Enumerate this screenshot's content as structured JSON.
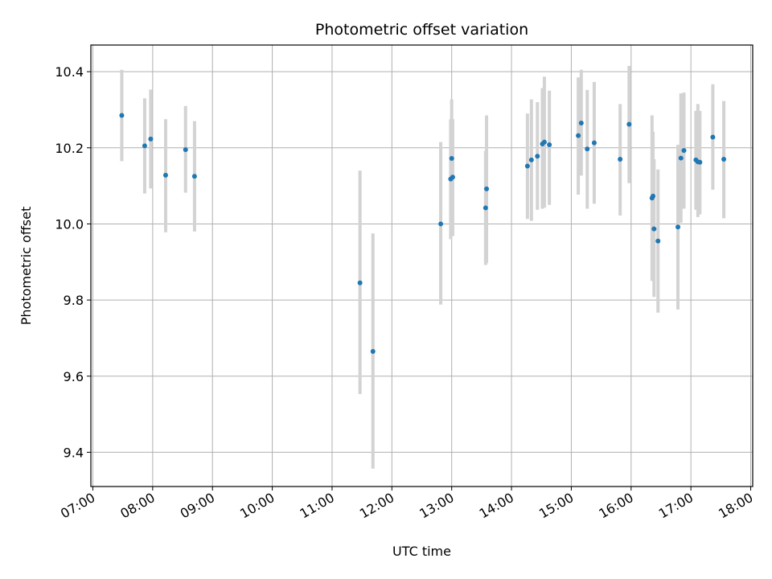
{
  "chart_data": {
    "type": "scatter",
    "title": "Photometric offset variation",
    "xlabel": "UTC time",
    "ylabel": "Photometric offset",
    "xlim": [
      "06:58",
      "18:02"
    ],
    "ylim": [
      9.31,
      10.47
    ],
    "x_ticks": [
      "07:00",
      "08:00",
      "09:00",
      "10:00",
      "11:00",
      "12:00",
      "13:00",
      "14:00",
      "15:00",
      "16:00",
      "17:00",
      "18:00"
    ],
    "y_ticks": [
      "9.4",
      "9.6",
      "9.8",
      "10.0",
      "10.2",
      "10.4"
    ],
    "grid": true,
    "colors": {
      "point": "#1f77b4",
      "errorbar": "#d3d3d3",
      "grid": "#b0b0b0"
    },
    "series": [
      {
        "points": [
          {
            "x": "07:29",
            "y": 10.285,
            "lo": 10.165,
            "hi": 10.405
          },
          {
            "x": "07:52",
            "y": 10.205,
            "lo": 10.08,
            "hi": 10.33
          },
          {
            "x": "07:58",
            "y": 10.223,
            "lo": 10.093,
            "hi": 10.353
          },
          {
            "x": "08:13",
            "y": 10.128,
            "lo": 9.978,
            "hi": 10.275
          },
          {
            "x": "08:33",
            "y": 10.195,
            "lo": 10.082,
            "hi": 10.31
          },
          {
            "x": "08:42",
            "y": 10.125,
            "lo": 9.98,
            "hi": 10.27
          },
          {
            "x": "11:28",
            "y": 9.845,
            "lo": 9.553,
            "hi": 10.14
          },
          {
            "x": "11:41",
            "y": 9.665,
            "lo": 9.357,
            "hi": 9.975
          },
          {
            "x": "12:49",
            "y": 10.0,
            "lo": 9.788,
            "hi": 10.215
          },
          {
            "x": "12:59",
            "y": 10.118,
            "lo": 9.96,
            "hi": 10.275
          },
          {
            "x": "13:00",
            "y": 10.172,
            "lo": 10.018,
            "hi": 10.327
          },
          {
            "x": "13:01",
            "y": 10.123,
            "lo": 9.968,
            "hi": 10.275
          },
          {
            "x": "13:34",
            "y": 10.042,
            "lo": 9.892,
            "hi": 10.192
          },
          {
            "x": "13:35",
            "y": 10.092,
            "lo": 9.897,
            "hi": 10.285
          },
          {
            "x": "14:16",
            "y": 10.152,
            "lo": 10.013,
            "hi": 10.29
          },
          {
            "x": "14:20",
            "y": 10.168,
            "lo": 10.008,
            "hi": 10.327
          },
          {
            "x": "14:26",
            "y": 10.178,
            "lo": 10.037,
            "hi": 10.32
          },
          {
            "x": "14:31",
            "y": 10.21,
            "lo": 10.04,
            "hi": 10.357
          },
          {
            "x": "14:33",
            "y": 10.215,
            "lo": 10.043,
            "hi": 10.387
          },
          {
            "x": "14:38",
            "y": 10.208,
            "lo": 10.05,
            "hi": 10.35
          },
          {
            "x": "15:07",
            "y": 10.232,
            "lo": 10.077,
            "hi": 10.385
          },
          {
            "x": "15:10",
            "y": 10.265,
            "lo": 10.127,
            "hi": 10.405
          },
          {
            "x": "15:16",
            "y": 10.197,
            "lo": 10.04,
            "hi": 10.352
          },
          {
            "x": "15:23",
            "y": 10.213,
            "lo": 10.053,
            "hi": 10.373
          },
          {
            "x": "15:49",
            "y": 10.17,
            "lo": 10.022,
            "hi": 10.315
          },
          {
            "x": "15:58",
            "y": 10.262,
            "lo": 10.107,
            "hi": 10.415
          },
          {
            "x": "16:21",
            "y": 10.068,
            "lo": 9.85,
            "hi": 10.285
          },
          {
            "x": "16:22",
            "y": 10.073,
            "lo": 9.902,
            "hi": 10.242
          },
          {
            "x": "16:23",
            "y": 9.987,
            "lo": 9.808,
            "hi": 10.17
          },
          {
            "x": "16:27",
            "y": 9.955,
            "lo": 9.767,
            "hi": 10.143
          },
          {
            "x": "16:47",
            "y": 9.992,
            "lo": 9.775,
            "hi": 10.208
          },
          {
            "x": "16:50",
            "y": 10.173,
            "lo": 10.003,
            "hi": 10.343
          },
          {
            "x": "16:53",
            "y": 10.193,
            "lo": 10.04,
            "hi": 10.345
          },
          {
            "x": "17:05",
            "y": 10.168,
            "lo": 10.037,
            "hi": 10.297
          },
          {
            "x": "17:07",
            "y": 10.163,
            "lo": 10.018,
            "hi": 10.315
          },
          {
            "x": "17:09",
            "y": 10.162,
            "lo": 10.025,
            "hi": 10.297
          },
          {
            "x": "17:22",
            "y": 10.228,
            "lo": 10.09,
            "hi": 10.367
          },
          {
            "x": "17:33",
            "y": 10.17,
            "lo": 10.015,
            "hi": 10.323
          }
        ]
      }
    ]
  }
}
